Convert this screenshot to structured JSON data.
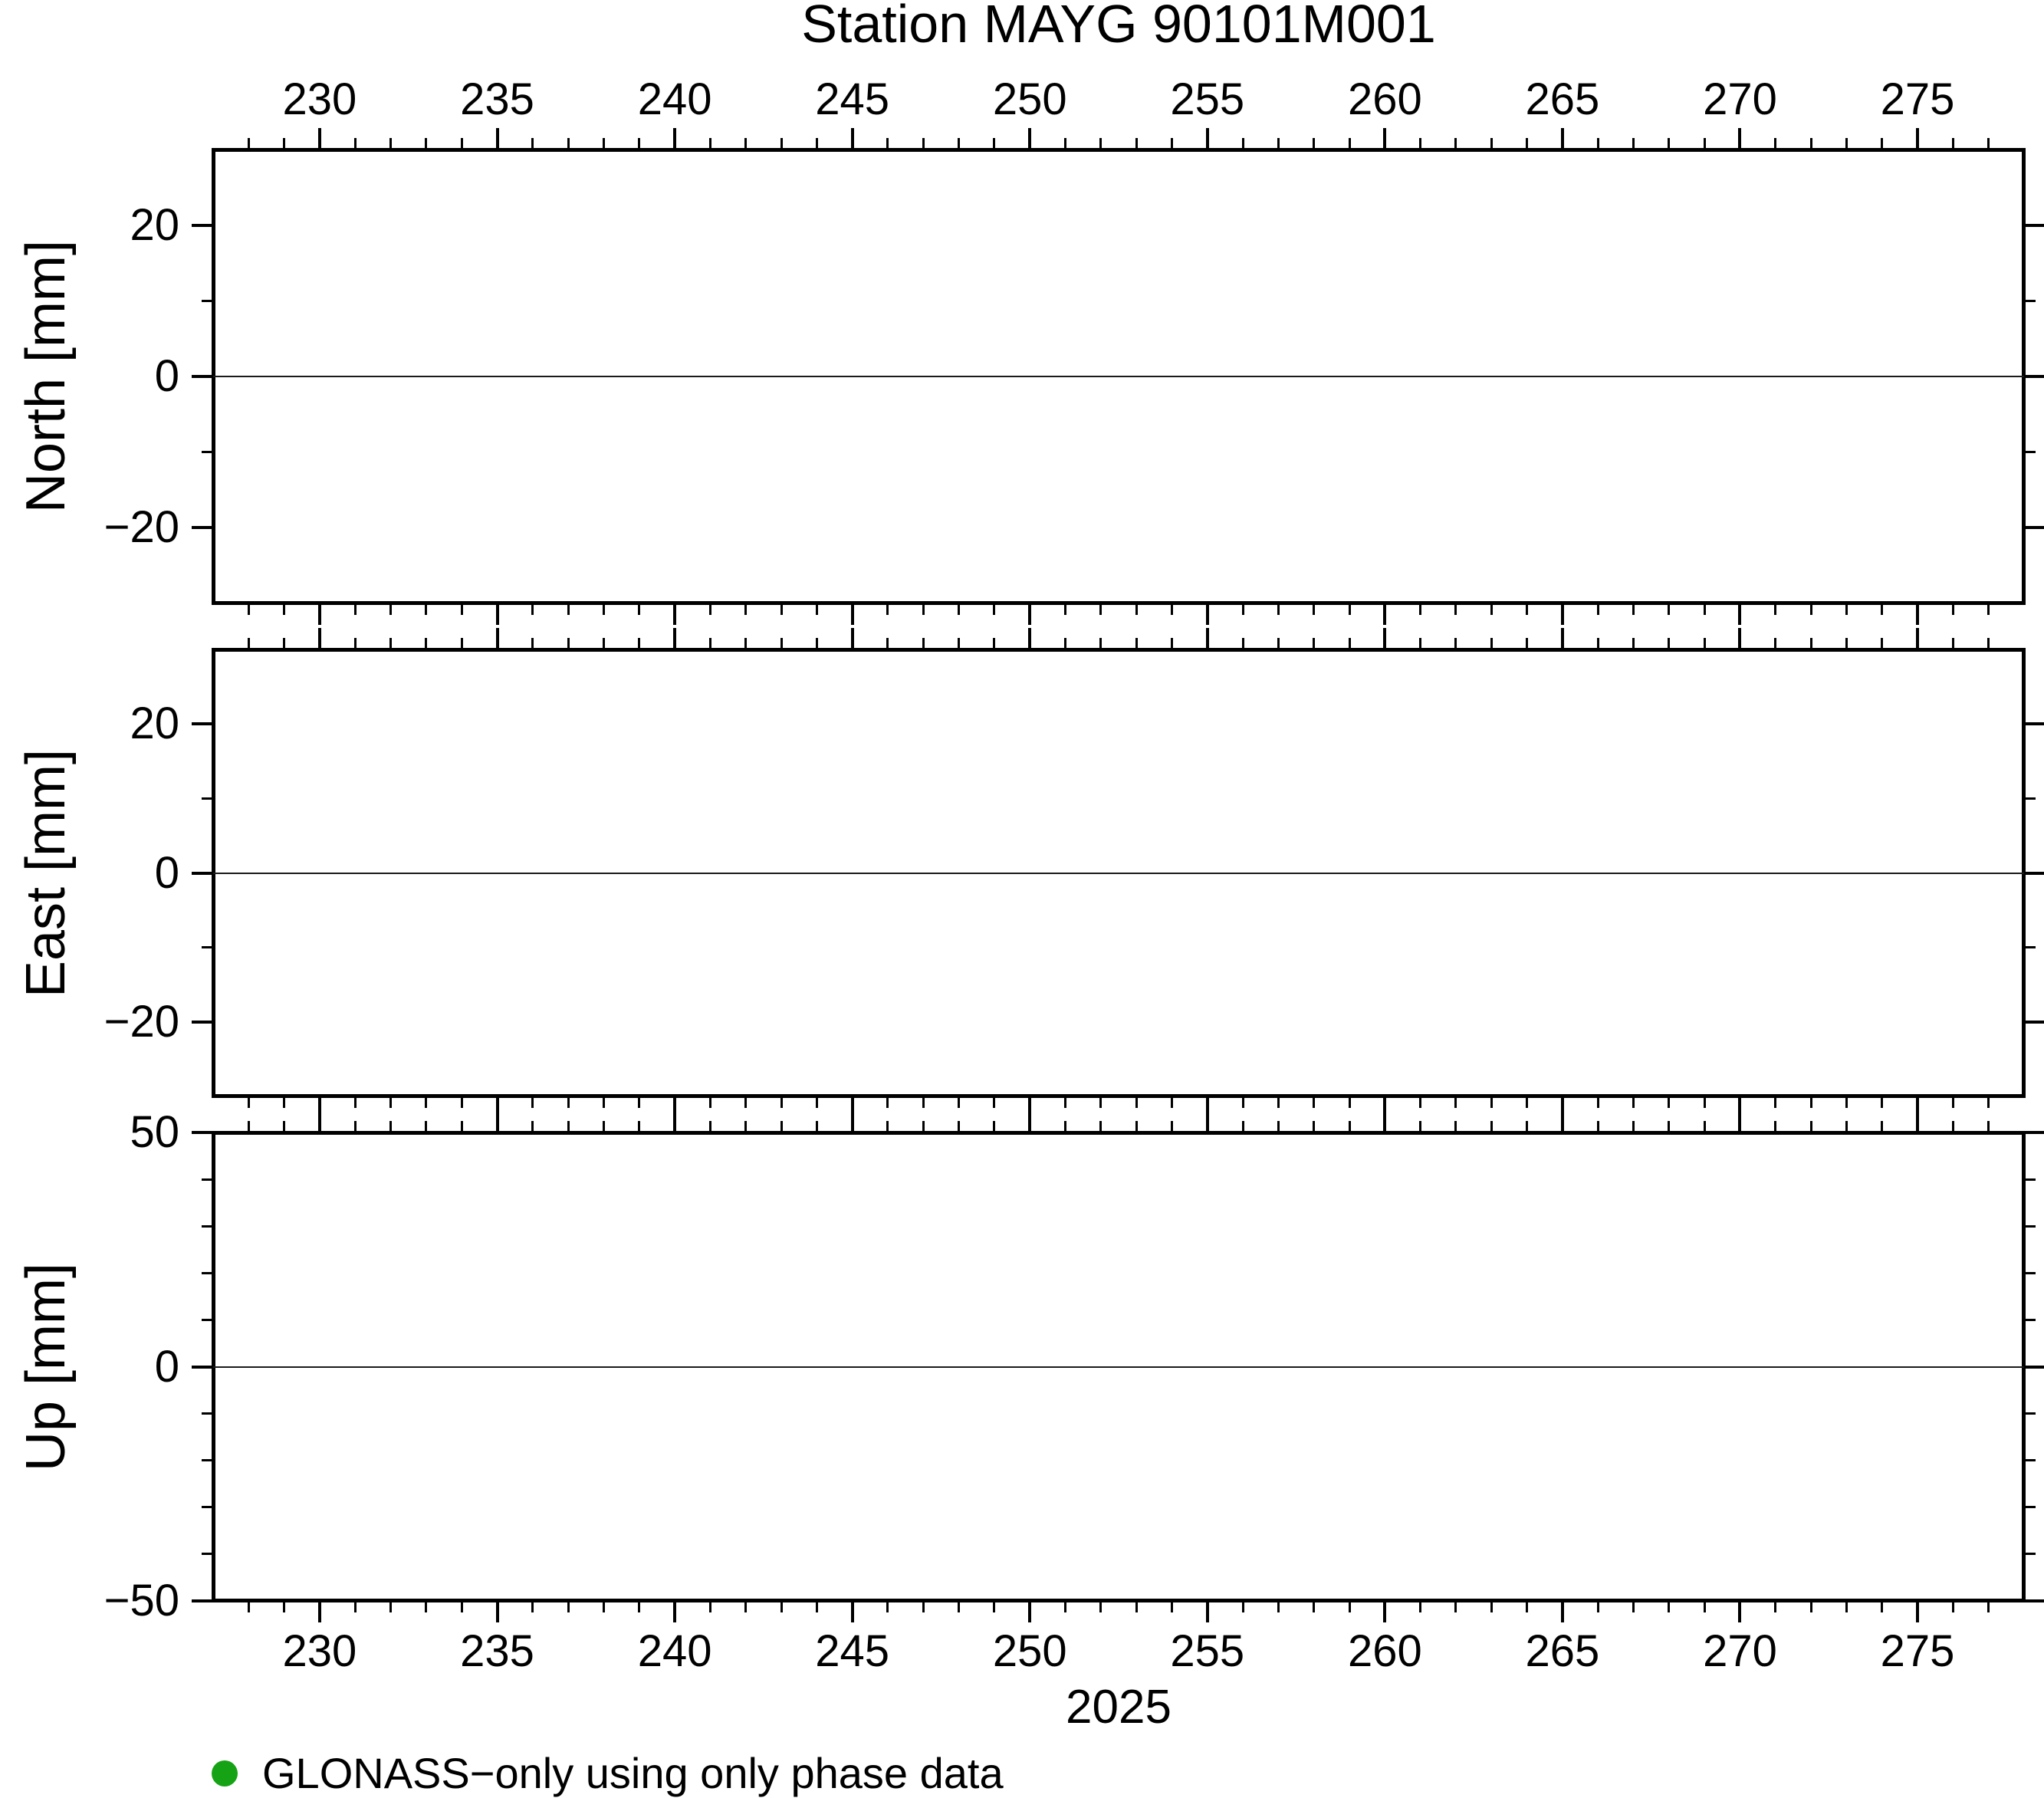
{
  "figure": {
    "background": "#ffffff"
  },
  "chart_data": {
    "type": "line",
    "title": "Station MAYG 90101M001",
    "x": {
      "label": "2025",
      "range": [
        227,
        278
      ],
      "major_ticks": [
        230,
        235,
        240,
        245,
        250,
        255,
        260,
        265,
        270,
        275
      ],
      "minor_step": 1,
      "tick_label_positions": [
        "top",
        "bottom"
      ]
    },
    "panels": [
      {
        "name": "north",
        "ylabel": "North [mm]",
        "ylim": [
          -30,
          30
        ],
        "yticks": [
          20,
          0,
          -20
        ],
        "y_minor_step": 10,
        "zero_line": true,
        "series": []
      },
      {
        "name": "east",
        "ylabel": "East [mm]",
        "ylim": [
          -30,
          30
        ],
        "yticks": [
          20,
          0,
          -20
        ],
        "y_minor_step": 10,
        "zero_line": true,
        "series": []
      },
      {
        "name": "up",
        "ylabel": "Up [mm]",
        "ylim": [
          -50,
          50
        ],
        "yticks": [
          50,
          0,
          -50
        ],
        "y_minor_step": 10,
        "zero_line": true,
        "series": []
      }
    ],
    "legend": {
      "position": "bottom-left",
      "items": [
        {
          "label": "GLONASS−only using only phase data",
          "marker": "circle",
          "color": "#15a315"
        }
      ]
    }
  }
}
